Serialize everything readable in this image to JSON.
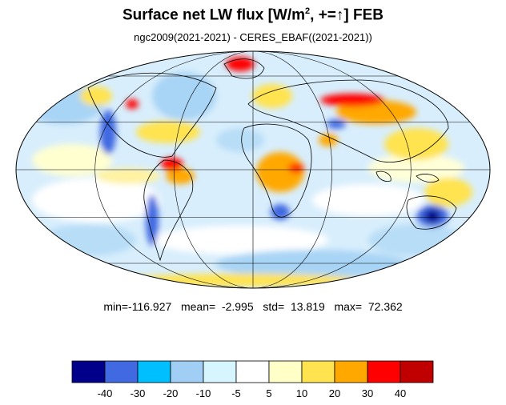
{
  "title": {
    "prefix": "Surface net LW flux [W/m",
    "sup": "2",
    "middle": ", +=",
    "arrow": "↑",
    "suffix": "]  FEB"
  },
  "subtitle": "ngc2009(2021-2021) - CERES_EBAF((2021-2021))",
  "stats": {
    "min_label": "min=",
    "min": "-116.927",
    "mean_label": "mean=",
    "mean": "-2.995",
    "std_label": "std=",
    "std": "13.819",
    "max_label": "max=",
    "max": "72.362"
  },
  "projection": "Mollweide",
  "colorbar": {
    "colors": [
      "#00008b",
      "#4169e1",
      "#00bfff",
      "#a0cef5",
      "#d6f5ff",
      "#ffffff",
      "#ffffc8",
      "#ffe34f",
      "#ffa800",
      "#ff0000",
      "#c00000"
    ],
    "tick_labels": [
      "-40",
      "-30",
      "-20",
      "-10",
      "-5",
      "5",
      "10",
      "20",
      "30",
      "40"
    ]
  }
}
